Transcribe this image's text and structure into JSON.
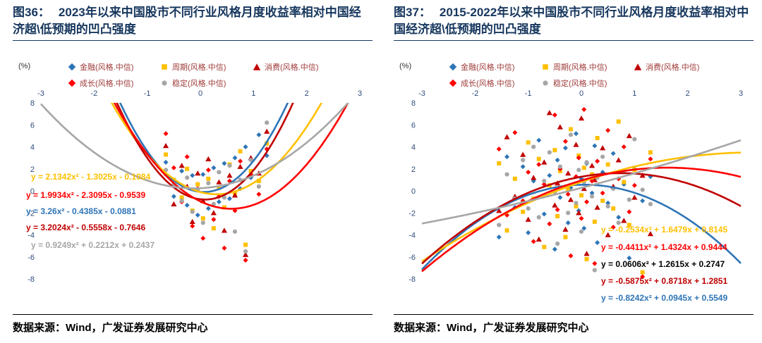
{
  "palette": {
    "title_color": "#17375E",
    "legend_text": "#9E3A38",
    "tick_text": "#2F4C7C"
  },
  "source_note": "数据来源：Wind，广发证券发展研究中心",
  "chart_data": [
    {
      "type": "scatter",
      "fig_label": "图36：",
      "title": "2023年以来中国股市不同行业风格月度收益率相对中国经济超\\低预期的凹凸强度",
      "unit": "(%)",
      "xlim": [
        -3,
        3
      ],
      "ylim": [
        -8,
        8
      ],
      "x_ticks": [
        -3,
        -2,
        -1,
        0,
        1,
        2,
        3
      ],
      "y_ticks": [
        8,
        6,
        4,
        2,
        0,
        -2,
        -4,
        -6,
        -8
      ],
      "grid": false,
      "legend_position": "top",
      "x": [
        -0.65,
        -0.5,
        -0.35,
        -0.25,
        -0.15,
        -0.05,
        0.05,
        0.15,
        0.25,
        0.35,
        0.45,
        0.55,
        0.65,
        0.75,
        0.85,
        0.95,
        1.1,
        1.25
      ],
      "series": [
        {
          "name": "金融(风格.中信)",
          "marker": "diamond",
          "color": "#2E75B6",
          "fit_a": 3.26,
          "fit_b": -0.4385,
          "fit_c": -0.0881,
          "y": [
            2.6,
            -0.5,
            1.8,
            -1.3,
            1.4,
            -2.2,
            1.5,
            -1.6,
            2.1,
            -1.0,
            2.5,
            -0.7,
            3.0,
            0.2,
            4.0,
            1.2,
            5.1,
            3.2
          ]
        },
        {
          "name": "周期(风格.中信)",
          "marker": "square",
          "color": "#FFC000",
          "fit_a": 2.1342,
          "fit_b": -1.3025,
          "fit_c": -0.1084,
          "y": [
            3.3,
            1.0,
            -0.6,
            2.0,
            -1.8,
            0.6,
            -2.5,
            1.1,
            -3.4,
            0.3,
            -1.5,
            2.4,
            -0.2,
            3.6,
            -4.9,
            1.8,
            0.9,
            4.3
          ]
        },
        {
          "name": "消费(风格.中信)",
          "marker": "triangle",
          "color": "#C00000",
          "fit_a": 3.2024,
          "fit_b": -0.5558,
          "fit_c": -0.7646,
          "y": [
            4.1,
            -1.2,
            2.3,
            0.4,
            -2.8,
            1.6,
            -0.9,
            2.9,
            -2.0,
            0.8,
            -3.6,
            1.4,
            -0.4,
            2.2,
            -5.8,
            3.0,
            1.6,
            5.4
          ]
        },
        {
          "name": "成长(风格.中信)",
          "marker": "diamond",
          "color": "#FF0000",
          "fit_a": 1.9934,
          "fit_b": -2.3095,
          "fit_c": -0.9539,
          "y": [
            5.2,
            2.1,
            -1.0,
            3.1,
            -3.2,
            0.2,
            -4.3,
            1.9,
            -2.6,
            -0.5,
            -5.2,
            0.9,
            -1.8,
            2.7,
            -6.3,
            1.5,
            -0.3,
            3.8
          ]
        },
        {
          "name": "稳定(风格.中信)",
          "marker": "circle",
          "color": "#A6A6A6",
          "fit_a": 0.9249,
          "fit_b": 0.2212,
          "fit_c": 0.2437,
          "y": [
            1.9,
            0.6,
            -0.9,
            1.2,
            -1.9,
            0.1,
            -2.9,
            0.7,
            -1.2,
            1.7,
            -0.6,
            2.3,
            -3.7,
            1.0,
            -5.5,
            2.8,
            0.4,
            6.2
          ]
        }
      ],
      "equations": [
        {
          "series": "周期(风格.中信)",
          "text": "y = 2.1342x² - 1.3025x - 0.1084",
          "color": "#FFC000"
        },
        {
          "series": "成长(风格.中信)",
          "text": "y = 1.9934x² - 2.3095x - 0.9539",
          "color": "#FF0000"
        },
        {
          "series": "金融(风格.中信)",
          "text": "y = 3.26x² - 0.4385x - 0.0881",
          "color": "#2E75B6"
        },
        {
          "series": "消费(风格.中信)",
          "text": "y = 3.2024x² - 0.5558x - 0.7646",
          "color": "#C00000"
        },
        {
          "series": "稳定(风格.中信)",
          "text": "y = 0.9249x² + 0.2212x + 0.2437",
          "color": "#A6A6A6"
        }
      ]
    },
    {
      "type": "scatter",
      "fig_label": "图37：",
      "title": "2015-2022年以来中国股市不同行业风格月度收益率相对中国经济超\\低预期的凹凸强度",
      "unit": "(%)",
      "xlim": [
        -3,
        3
      ],
      "ylim": [
        -8,
        8
      ],
      "x_ticks": [
        -3,
        -2,
        -1,
        0,
        1,
        2,
        3
      ],
      "y_ticks": [
        8,
        6,
        4,
        2,
        0,
        -2,
        -4,
        -6,
        -8
      ],
      "grid": false,
      "legend_position": "top",
      "x": [
        -1.55,
        -1.4,
        -1.25,
        -1.1,
        -1.0,
        -0.9,
        -0.8,
        -0.7,
        -0.6,
        -0.5,
        -0.45,
        -0.4,
        -0.3,
        -0.25,
        -0.2,
        -0.1,
        -0.05,
        0,
        0.05,
        0.1,
        0.2,
        0.25,
        0.3,
        0.4,
        0.5,
        0.6,
        0.7,
        0.8,
        0.9,
        1.0,
        1.15,
        1.3
      ],
      "series": [
        {
          "name": "金融(风格.中信)",
          "marker": "diamond",
          "color": "#2E75B6",
          "fit_a": -0.8242,
          "fit_b": 0.0945,
          "fit_c": 0.5549,
          "y": [
            -4.2,
            3.1,
            -1.5,
            2.2,
            -3.8,
            0.9,
            4.6,
            -2.1,
            1.4,
            -5.3,
            2.8,
            -0.6,
            3.9,
            -2.9,
            0.3,
            5.2,
            -1.8,
            1.1,
            -3.4,
            2.5,
            -0.2,
            4.1,
            -4.7,
            1.7,
            -1.1,
            3.4,
            -2.4,
            0.6,
            -6.1,
            2.0,
            -0.9,
            1.3
          ]
        },
        {
          "name": "周期(风格.中信)",
          "marker": "square",
          "color": "#FFC000",
          "fit_a": -0.2534,
          "fit_b": 1.6479,
          "fit_c": 0.8145,
          "y": [
            2.5,
            -3.6,
            1.1,
            -1.9,
            4.4,
            -0.7,
            2.9,
            -5.1,
            0.5,
            3.7,
            -2.3,
            1.8,
            -4.2,
            0.1,
            5.6,
            -1.4,
            3.2,
            -0.4,
            2.1,
            -6.2,
            1.5,
            -2.8,
            4.8,
            -0.9,
            2.4,
            -1.6,
            6.3,
            0.8,
            -3.1,
            1.9,
            -7.4,
            3.5
          ]
        },
        {
          "name": "消费(风格.中信)",
          "marker": "triangle",
          "color": "#C00000",
          "fit_a": -0.5875,
          "fit_b": 0.8718,
          "fit_c": 1.2851,
          "y": [
            -1.8,
            4.9,
            -0.5,
            3.3,
            -2.6,
            1.2,
            -4.4,
            2.6,
            7.1,
            -1.3,
            0.7,
            5.8,
            -3.5,
            1.6,
            -0.8,
            4.2,
            -2.0,
            6.6,
            0.2,
            -5.7,
            2.3,
            1.0,
            -1.5,
            3.9,
            -4.0,
            0.4,
            2.8,
            -2.7,
            5.0,
            -0.6,
            1.4,
            -3.9
          ]
        },
        {
          "name": "成长(风格.中信)",
          "marker": "diamond",
          "color": "#FF0000",
          "fit_a": -0.4411,
          "fit_b": 1.4324,
          "fit_c": 0.9444,
          "y": [
            3.8,
            -2.2,
            5.3,
            -0.9,
            1.7,
            -4.6,
            2.4,
            0.6,
            -3.0,
            6.9,
            -1.7,
            2.0,
            4.5,
            -0.3,
            -5.9,
            1.3,
            3.0,
            -2.5,
            7.4,
            -1.0,
            0.9,
            -6.6,
            2.7,
            -0.2,
            5.5,
            -3.3,
            1.1,
            4.0,
            -1.9,
            0.5,
            -7.8,
            2.9
          ]
        },
        {
          "name": "稳定(风格.中信)",
          "marker": "circle",
          "color": "#A6A6A6",
          "fit_a": 0.0606,
          "fit_b": 1.2615,
          "fit_c": 0.2747,
          "y": [
            -3.1,
            1.5,
            -0.7,
            2.8,
            -1.6,
            4.0,
            -2.4,
            0.9,
            3.5,
            -0.1,
            -4.8,
            2.2,
            0.4,
            -2.0,
            5.1,
            -1.1,
            1.9,
            -3.7,
            0.8,
            2.6,
            -0.5,
            -7.2,
            1.2,
            3.1,
            -1.4,
            0.2,
            -2.9,
            1.8,
            -0.8,
            4.7,
            0.1,
            -1.2
          ]
        }
      ],
      "equations": [
        {
          "series": "周期(风格.中信)",
          "text": "y = -0.2534x² + 1.6479x + 0.8145",
          "color": "#FFC000"
        },
        {
          "series": "成长(风格.中信)",
          "text": "y = -0.4411x² + 1.4324x + 0.9444",
          "color": "#FF0000"
        },
        {
          "series": "稳定(风格.中信)",
          "text": "y = 0.0606x² + 1.2615x + 0.2747",
          "color": "#000000"
        },
        {
          "series": "消费(风格.中信)",
          "text": "y = -0.5875x² + 0.8718x + 1.2851",
          "color": "#C00000"
        },
        {
          "series": "金融(风格.中信)",
          "text": "y = -0.8242x² + 0.0945x + 0.5549",
          "color": "#2E75B6"
        }
      ]
    }
  ]
}
